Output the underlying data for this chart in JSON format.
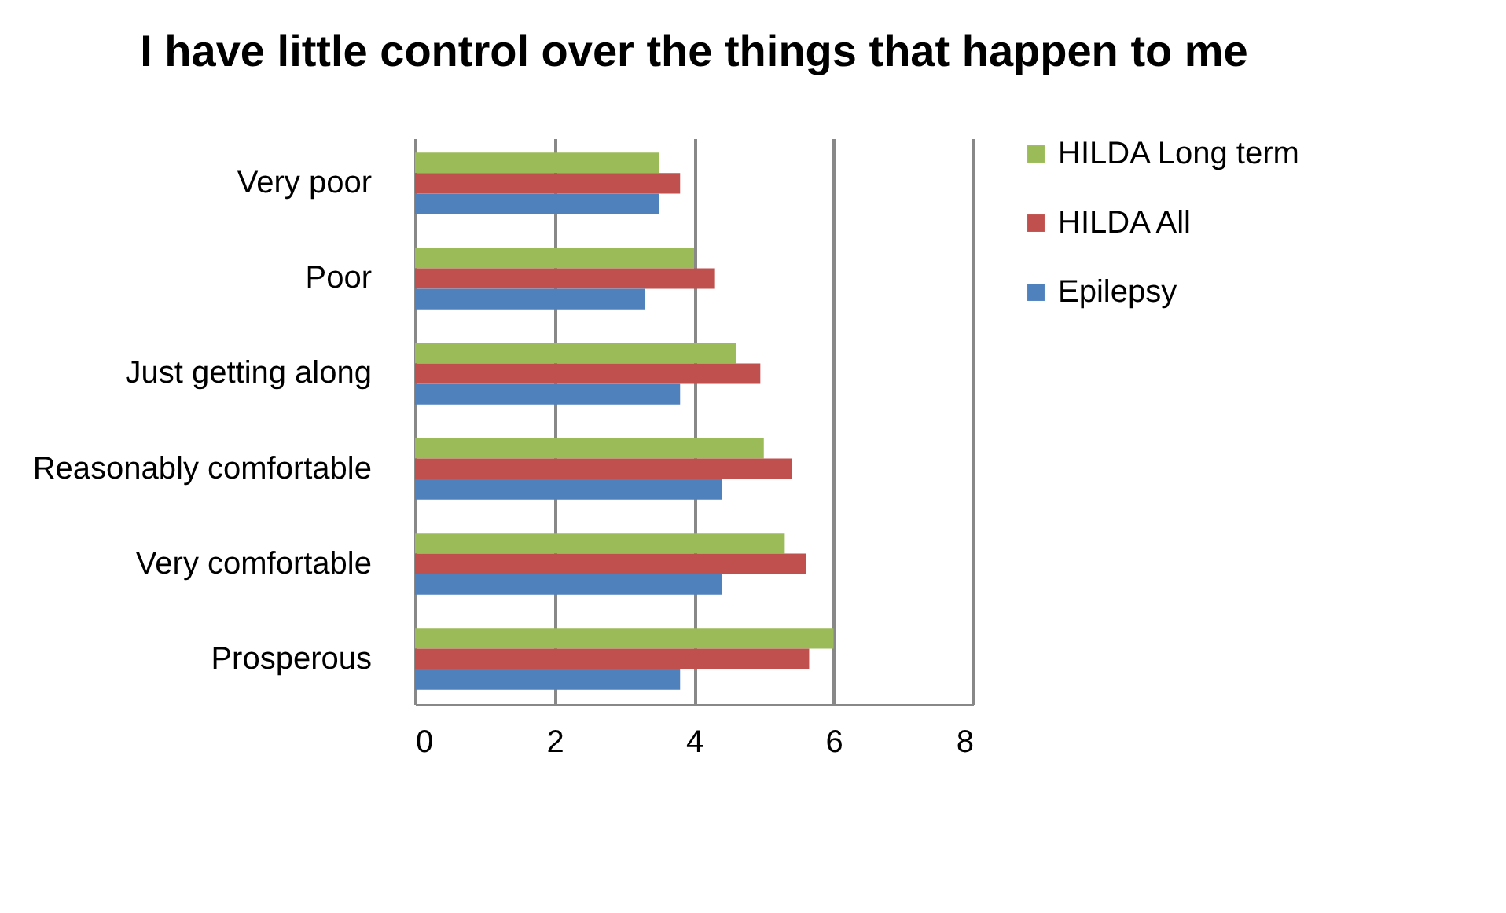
{
  "chart_data": {
    "type": "bar",
    "orientation": "horizontal",
    "title": "I have little control over the things that happen to me",
    "categories": [
      "Very poor",
      "Poor",
      "Just getting along",
      "Reasonably comfortable",
      "Very comfortable",
      "Prosperous"
    ],
    "series": [
      {
        "name": "HILDA Long term",
        "color": "#9bbb59",
        "values": [
          3.5,
          4.0,
          4.6,
          5.0,
          5.3,
          6.0
        ]
      },
      {
        "name": "HILDA All",
        "color": "#c0504d",
        "values": [
          3.8,
          4.3,
          4.95,
          5.4,
          5.6,
          5.65
        ]
      },
      {
        "name": "Epilepsy",
        "color": "#4f81bd",
        "values": [
          3.5,
          3.3,
          3.8,
          4.4,
          4.4,
          3.8
        ]
      }
    ],
    "xlim": [
      0,
      8
    ],
    "xticks": [
      0,
      2,
      4,
      6,
      8
    ],
    "grid": "x",
    "legend": "right"
  }
}
